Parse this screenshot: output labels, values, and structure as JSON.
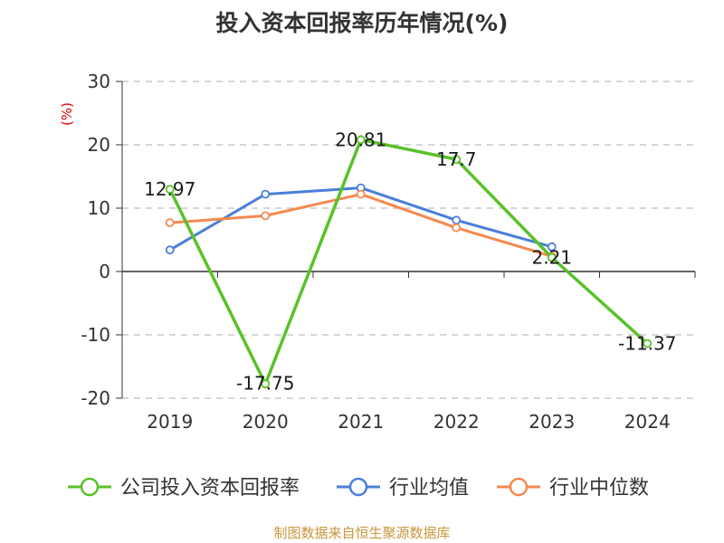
{
  "chart_data": {
    "type": "line",
    "title": "投入资本回报率历年情况(%)",
    "ylabel": "(%)",
    "xlabel": "",
    "categories": [
      "2019",
      "2020",
      "2021",
      "2022",
      "2023",
      "2024"
    ],
    "ylim": [
      -20,
      30
    ],
    "yticks": [
      30,
      20,
      10,
      0,
      -10,
      -20
    ],
    "grid": true,
    "legend_position": "bottom",
    "series": [
      {
        "name": "公司投入资本回报率",
        "color": "#5ac12a",
        "values": [
          12.97,
          -17.75,
          20.81,
          17.7,
          2.21,
          -11.37
        ],
        "labels": [
          "12.97",
          "-17.75",
          "20.81",
          "17.7",
          "2.21",
          "-11.37"
        ]
      },
      {
        "name": "行业均值",
        "color": "#4a7fd8",
        "values": [
          3.4,
          12.2,
          13.2,
          8.1,
          3.9,
          null
        ]
      },
      {
        "name": "行业中位数",
        "color": "#f5894f",
        "values": [
          7.7,
          8.8,
          12.2,
          6.9,
          2.4,
          null
        ]
      }
    ]
  },
  "footer": "制图数据来自恒生聚源数据库"
}
